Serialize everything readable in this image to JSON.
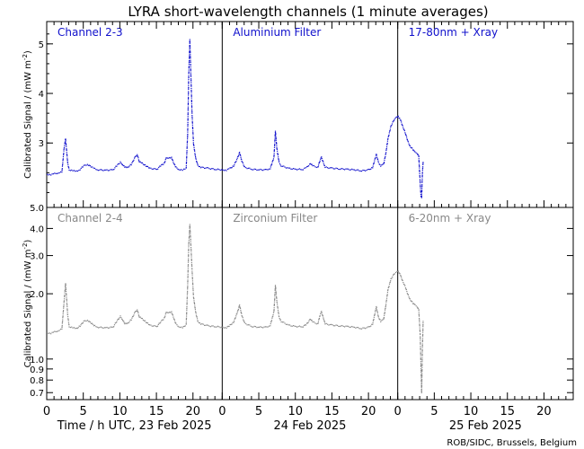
{
  "chart_data": {
    "type": "scatter",
    "title": "LYRA short-wavelength channels (1 minute averages)",
    "ylabel": "Calibrated Signal / (mW m",
    "ylabel_sup": "-2",
    "ylabel_close": ")",
    "x_tick_labels": [
      "0",
      "5",
      "10",
      "15",
      "20"
    ],
    "x_tick_minor_step_h": 1,
    "day_labels": [
      "Time / h UTC, 23 Feb 2025",
      "24 Feb 2025",
      "25 Feb 2025"
    ],
    "credit": "ROB/SIDC, Brussels, Belgium",
    "grid": false,
    "colors": {
      "top": "#1010cc",
      "bottom": "#888888",
      "frame": "#000000"
    },
    "rows": [
      {
        "position": "top",
        "scale": "linear",
        "ylim": [
          1.7,
          5.45
        ],
        "yticks": [
          {
            "value": 3,
            "label": "3"
          },
          {
            "value": 4,
            "label": "4"
          },
          {
            "value": 5,
            "label": "5"
          }
        ],
        "panels": [
          {
            "label": "Channel 2-3",
            "day": 23
          },
          {
            "label": "Aluminium Filter",
            "day": 24
          },
          {
            "label": "17-80nm + Xray",
            "day": 25
          }
        ],
        "series": [
          {
            "day": 23,
            "points": [
              [
                0,
                2.38
              ],
              [
                0.5,
                2.37
              ],
              [
                1,
                2.39
              ],
              [
                1.5,
                2.41
              ],
              [
                2,
                2.42
              ],
              [
                2.3,
                2.9
              ],
              [
                2.5,
                3.1
              ],
              [
                2.8,
                2.6
              ],
              [
                3,
                2.47
              ],
              [
                3.5,
                2.45
              ],
              [
                4,
                2.44
              ],
              [
                4.5,
                2.48
              ],
              [
                5,
                2.55
              ],
              [
                5.5,
                2.58
              ],
              [
                6,
                2.53
              ],
              [
                6.5,
                2.49
              ],
              [
                7,
                2.47
              ],
              [
                8,
                2.46
              ],
              [
                9,
                2.47
              ],
              [
                9.5,
                2.55
              ],
              [
                10,
                2.62
              ],
              [
                10.3,
                2.58
              ],
              [
                10.6,
                2.52
              ],
              [
                11,
                2.52
              ],
              [
                11.5,
                2.58
              ],
              [
                12,
                2.72
              ],
              [
                12.3,
                2.78
              ],
              [
                12.6,
                2.63
              ],
              [
                13,
                2.6
              ],
              [
                13.5,
                2.55
              ],
              [
                14,
                2.5
              ],
              [
                15,
                2.48
              ],
              [
                15.5,
                2.55
              ],
              [
                16,
                2.6
              ],
              [
                16.3,
                2.72
              ],
              [
                16.6,
                2.7
              ],
              [
                17,
                2.72
              ],
              [
                17.3,
                2.6
              ],
              [
                17.6,
                2.52
              ],
              [
                18,
                2.48
              ],
              [
                18.5,
                2.46
              ],
              [
                19,
                2.5
              ],
              [
                19.2,
                3.2
              ],
              [
                19.35,
                4.4
              ],
              [
                19.5,
                5.1
              ],
              [
                19.6,
                4.6
              ],
              [
                19.8,
                3.6
              ],
              [
                20,
                3.0
              ],
              [
                20.3,
                2.7
              ],
              [
                20.6,
                2.56
              ],
              [
                21,
                2.52
              ],
              [
                22,
                2.5
              ],
              [
                23,
                2.48
              ],
              [
                24,
                2.47
              ]
            ]
          },
          {
            "day": 24,
            "points": [
              [
                0,
                2.47
              ],
              [
                0.5,
                2.46
              ],
              [
                1,
                2.5
              ],
              [
                1.5,
                2.55
              ],
              [
                2,
                2.7
              ],
              [
                2.3,
                2.82
              ],
              [
                2.6,
                2.65
              ],
              [
                3,
                2.52
              ],
              [
                4,
                2.48
              ],
              [
                5,
                2.47
              ],
              [
                6,
                2.47
              ],
              [
                6.5,
                2.5
              ],
              [
                7,
                2.72
              ],
              [
                7.2,
                3.25
              ],
              [
                7.4,
                2.9
              ],
              [
                7.7,
                2.62
              ],
              [
                8,
                2.55
              ],
              [
                9,
                2.5
              ],
              [
                10,
                2.48
              ],
              [
                11,
                2.48
              ],
              [
                11.5,
                2.52
              ],
              [
                12,
                2.6
              ],
              [
                12.3,
                2.55
              ],
              [
                13,
                2.52
              ],
              [
                13.3,
                2.66
              ],
              [
                13.5,
                2.72
              ],
              [
                13.8,
                2.6
              ],
              [
                14,
                2.52
              ],
              [
                15,
                2.5
              ],
              [
                16,
                2.49
              ],
              [
                17,
                2.48
              ],
              [
                18,
                2.47
              ],
              [
                19,
                2.45
              ],
              [
                20,
                2.47
              ],
              [
                20.5,
                2.52
              ],
              [
                21,
                2.78
              ],
              [
                21.3,
                2.62
              ],
              [
                21.6,
                2.55
              ],
              [
                22,
                2.58
              ],
              [
                22.3,
                2.8
              ],
              [
                22.6,
                3.1
              ],
              [
                23,
                3.35
              ],
              [
                23.5,
                3.5
              ],
              [
                24,
                3.55
              ]
            ]
          },
          {
            "day": 25,
            "points": [
              [
                0,
                3.55
              ],
              [
                0.3,
                3.48
              ],
              [
                0.6,
                3.35
              ],
              [
                1,
                3.2
              ],
              [
                1.3,
                3.05
              ],
              [
                1.6,
                2.95
              ],
              [
                2,
                2.88
              ],
              [
                2.3,
                2.82
              ],
              [
                2.6,
                2.8
              ],
              [
                2.8,
                2.75
              ],
              [
                3,
                2.2
              ],
              [
                3.1,
                1.95
              ],
              [
                3.2,
                1.9
              ],
              [
                3.3,
                2.4
              ],
              [
                3.4,
                2.62
              ]
            ]
          }
        ]
      },
      {
        "position": "bottom",
        "scale": "log",
        "ylim": [
          0.65,
          5.0
        ],
        "yticks": [
          {
            "value": 0.7,
            "label": "0.7"
          },
          {
            "value": 0.8,
            "label": "0.8"
          },
          {
            "value": 0.9,
            "label": "0.9"
          },
          {
            "value": 1.0,
            "label": "1.0"
          },
          {
            "value": 2.0,
            "label": "2.0"
          },
          {
            "value": 3.0,
            "label": "3.0"
          },
          {
            "value": 4.0,
            "label": "4.0"
          },
          {
            "value": 5.0,
            "label": "5.0"
          }
        ],
        "panels": [
          {
            "label": "Channel 2-4",
            "day": 23
          },
          {
            "label": "Zirconium Filter",
            "day": 24
          },
          {
            "label": "6-20nm + Xray",
            "day": 25
          }
        ],
        "series": [
          {
            "day": 23,
            "points": [
              [
                0,
                1.33
              ],
              [
                0.5,
                1.32
              ],
              [
                1,
                1.34
              ],
              [
                1.5,
                1.36
              ],
              [
                2,
                1.38
              ],
              [
                2.3,
                1.85
              ],
              [
                2.5,
                2.25
              ],
              [
                2.8,
                1.6
              ],
              [
                3,
                1.42
              ],
              [
                3.5,
                1.4
              ],
              [
                4,
                1.39
              ],
              [
                4.5,
                1.43
              ],
              [
                5,
                1.5
              ],
              [
                5.5,
                1.52
              ],
              [
                6,
                1.47
              ],
              [
                6.5,
                1.43
              ],
              [
                7,
                1.41
              ],
              [
                8,
                1.4
              ],
              [
                9,
                1.41
              ],
              [
                9.5,
                1.5
              ],
              [
                10,
                1.58
              ],
              [
                10.3,
                1.53
              ],
              [
                10.6,
                1.46
              ],
              [
                11,
                1.47
              ],
              [
                11.5,
                1.53
              ],
              [
                12,
                1.65
              ],
              [
                12.3,
                1.7
              ],
              [
                12.6,
                1.57
              ],
              [
                13,
                1.54
              ],
              [
                13.5,
                1.49
              ],
              [
                14,
                1.44
              ],
              [
                15,
                1.42
              ],
              [
                15.5,
                1.49
              ],
              [
                16,
                1.55
              ],
              [
                16.3,
                1.66
              ],
              [
                16.6,
                1.64
              ],
              [
                17,
                1.66
              ],
              [
                17.3,
                1.55
              ],
              [
                17.6,
                1.46
              ],
              [
                18,
                1.42
              ],
              [
                18.5,
                1.4
              ],
              [
                19,
                1.45
              ],
              [
                19.2,
                2.2
              ],
              [
                19.35,
                3.4
              ],
              [
                19.5,
                4.2
              ],
              [
                19.6,
                3.6
              ],
              [
                19.8,
                2.6
              ],
              [
                20,
                1.95
              ],
              [
                20.3,
                1.65
              ],
              [
                20.6,
                1.5
              ],
              [
                21,
                1.46
              ],
              [
                22,
                1.43
              ],
              [
                23,
                1.42
              ],
              [
                24,
                1.41
              ]
            ]
          },
          {
            "day": 24,
            "points": [
              [
                0,
                1.41
              ],
              [
                0.5,
                1.4
              ],
              [
                1,
                1.44
              ],
              [
                1.5,
                1.49
              ],
              [
                2,
                1.65
              ],
              [
                2.3,
                1.78
              ],
              [
                2.6,
                1.6
              ],
              [
                3,
                1.47
              ],
              [
                4,
                1.42
              ],
              [
                5,
                1.41
              ],
              [
                6,
                1.41
              ],
              [
                6.5,
                1.44
              ],
              [
                7,
                1.66
              ],
              [
                7.2,
                2.2
              ],
              [
                7.4,
                1.85
              ],
              [
                7.7,
                1.57
              ],
              [
                8,
                1.5
              ],
              [
                9,
                1.44
              ],
              [
                10,
                1.42
              ],
              [
                11,
                1.42
              ],
              [
                11.5,
                1.46
              ],
              [
                12,
                1.54
              ],
              [
                12.3,
                1.49
              ],
              [
                13,
                1.46
              ],
              [
                13.3,
                1.6
              ],
              [
                13.5,
                1.66
              ],
              [
                13.8,
                1.54
              ],
              [
                14,
                1.46
              ],
              [
                15,
                1.44
              ],
              [
                16,
                1.43
              ],
              [
                17,
                1.42
              ],
              [
                18,
                1.41
              ],
              [
                19,
                1.39
              ],
              [
                20,
                1.41
              ],
              [
                20.5,
                1.46
              ],
              [
                21,
                1.75
              ],
              [
                21.3,
                1.57
              ],
              [
                21.6,
                1.5
              ],
              [
                22,
                1.53
              ],
              [
                22.3,
                1.78
              ],
              [
                22.6,
                2.1
              ],
              [
                23,
                2.35
              ],
              [
                23.5,
                2.5
              ],
              [
                24,
                2.55
              ]
            ]
          },
          {
            "day": 25,
            "points": [
              [
                0,
                2.55
              ],
              [
                0.3,
                2.45
              ],
              [
                0.6,
                2.3
              ],
              [
                1,
                2.15
              ],
              [
                1.3,
                2.0
              ],
              [
                1.6,
                1.9
              ],
              [
                2,
                1.82
              ],
              [
                2.3,
                1.78
              ],
              [
                2.6,
                1.75
              ],
              [
                2.8,
                1.7
              ],
              [
                3,
                1.3
              ],
              [
                3.1,
                0.95
              ],
              [
                3.2,
                0.7
              ],
              [
                3.3,
                1.1
              ],
              [
                3.4,
                1.5
              ]
            ]
          }
        ]
      }
    ]
  }
}
